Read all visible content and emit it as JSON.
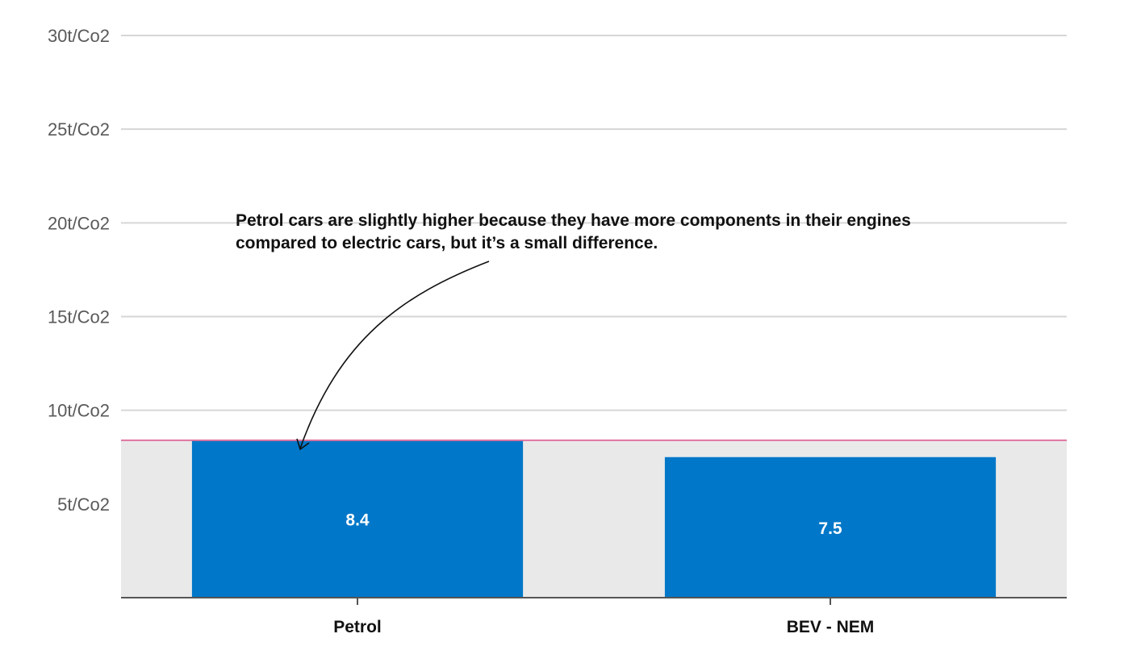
{
  "colors": {
    "bar": "#0077c8",
    "band": "#e9e9ea",
    "grid": "#d6d6d6",
    "axis": "#555555",
    "reference_line": "#e0749f",
    "annotation": "#111111"
  },
  "chart_data": {
    "type": "bar",
    "categories": [
      "Petrol",
      "BEV - NEM"
    ],
    "values": [
      8.4,
      7.5
    ],
    "value_labels": [
      "8.4",
      "7.5"
    ],
    "ylim": [
      0,
      30
    ],
    "yticks": [
      5,
      10,
      15,
      20,
      25,
      30
    ],
    "ytick_labels": [
      "5t/Co2",
      "10t/Co2",
      "15t/Co2",
      "20t/Co2",
      "25t/Co2",
      "30t/Co2"
    ],
    "grid": true,
    "reference_line_value": 8.4,
    "title": "",
    "xlabel": "",
    "ylabel": "",
    "annotation": {
      "lines": [
        "Petrol cars are slightly higher because they have more components in their engines",
        "compared to electric cars, but it’s a small difference."
      ],
      "points_to": "Petrol"
    }
  }
}
